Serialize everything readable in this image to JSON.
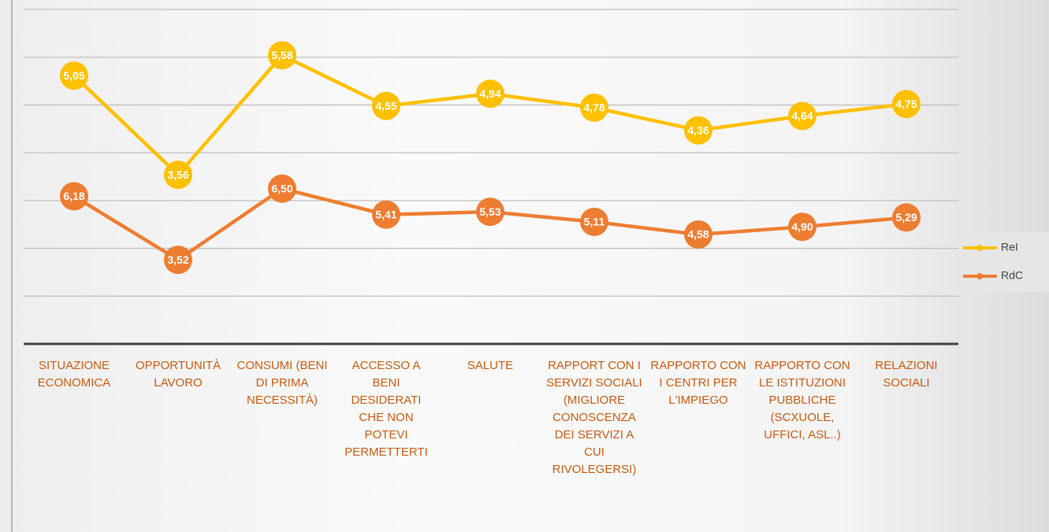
{
  "chart_data": {
    "type": "line",
    "stacked": true,
    "categories": [
      "SITUAZIONE ECONOMICA",
      "OPPORTUNITÀ LAVORO",
      "CONSUMI (BENI DI PRIMA NECESSITÀ)",
      "ACCESSO A BENI DESIDERATI CHE NON POTEVI PERMETTERTI",
      "SALUTE",
      "RAPPORT CON I SERVIZI SOCIALI (MIGLIORE CONOSCENZA DEI SERVIZI A CUI RIVOLEGERSI)",
      "RAPPORTO CON I CENTRI PER L'IMPIEGO",
      "RAPPORTO CON LE ISTITUZIONI PUBBLICHE (SCXUOLE, UFFICI, ASL..)",
      "RELAZIONI SOCIALI"
    ],
    "series": [
      {
        "name": "RdC",
        "color": "#ed7d31",
        "values": [
          6.18,
          3.52,
          6.5,
          5.41,
          5.53,
          5.11,
          4.58,
          4.9,
          5.29
        ],
        "value_labels": [
          "6,18",
          "3,52",
          "6,50",
          "5,41",
          "5,53",
          "5,11",
          "4,58",
          "4,90",
          "5,29"
        ]
      },
      {
        "name": "ReI",
        "color": "#ffc000",
        "values": [
          5.05,
          3.56,
          5.58,
          4.55,
          4.94,
          4.78,
          4.36,
          4.64,
          4.75
        ],
        "value_labels": [
          "5,05",
          "3,56",
          "5,58",
          "4,55",
          "4,94",
          "4,78",
          "4,36",
          "4,64",
          "4,75"
        ]
      }
    ],
    "ylim": [
      0,
      14
    ],
    "yticks": [
      0,
      2,
      4,
      6,
      8,
      10,
      12,
      14
    ],
    "grid": true,
    "legend": "right"
  }
}
